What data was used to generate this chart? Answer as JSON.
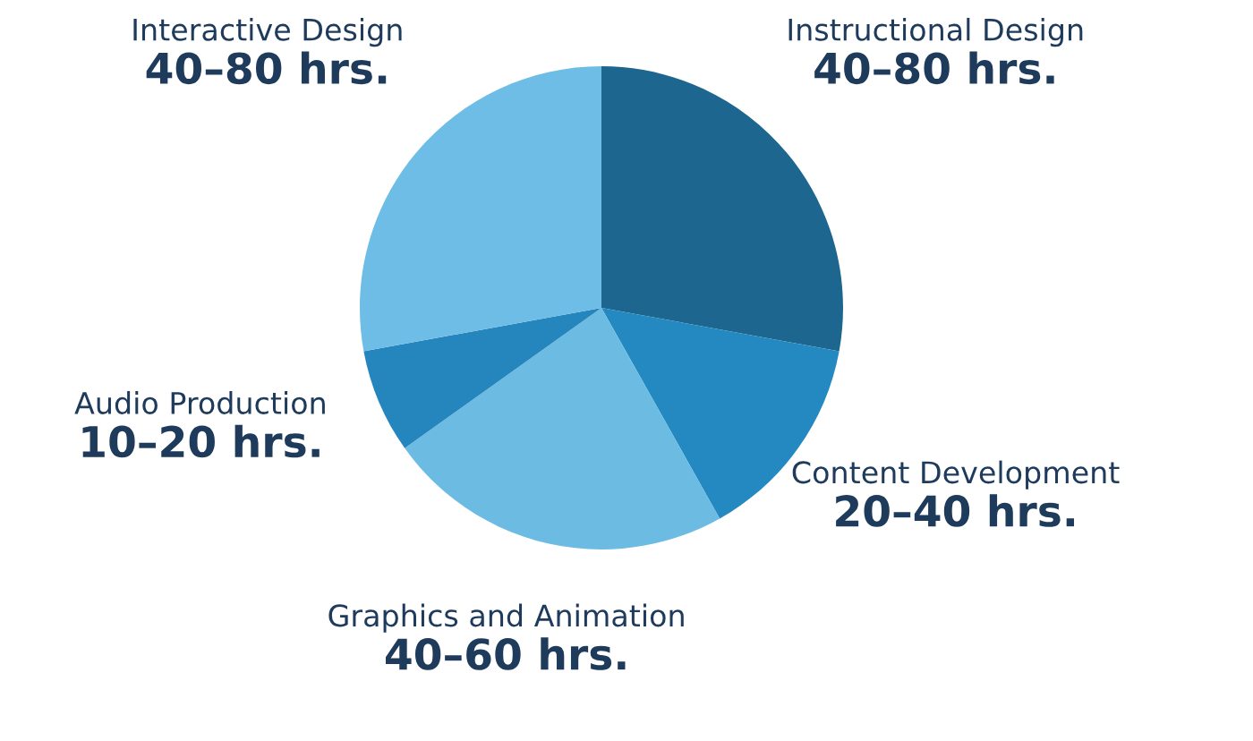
{
  "chart_data": {
    "type": "pie",
    "categories": [
      "Instructional Design",
      "Content Development",
      "Graphics and Animation",
      "Audio Production",
      "Interactive Design"
    ],
    "values": [
      27.9,
      14.0,
      23.3,
      7.0,
      27.9
    ],
    "colors": [
      "#1d668f",
      "#2389c0",
      "#6cbbe3",
      "#2586bd",
      "#6ebde6"
    ],
    "value_labels": [
      "40–80 hrs.",
      "20–40 hrs.",
      "40–60 hrs.",
      "10–20 hrs.",
      "40–80 hrs."
    ],
    "legend": false
  }
}
